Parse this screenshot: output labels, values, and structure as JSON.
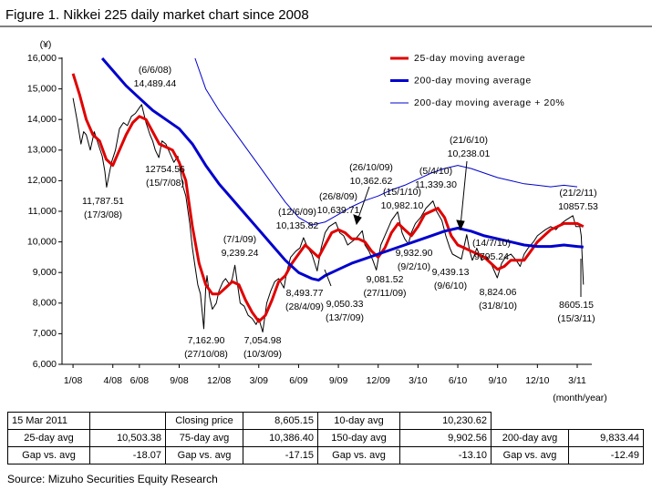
{
  "chart_data": {
    "type": "line",
    "title": "Figure 1. Nikkei 225 daily market chart since 2008",
    "y_label": "(¥)",
    "x_label": "(month/year)",
    "xlim": [
      -0.83,
      39.1
    ],
    "ylim": [
      6000,
      16000
    ],
    "xticks": [
      {
        "value": 0,
        "label": "1/08"
      },
      {
        "value": 3,
        "label": "4/08"
      },
      {
        "value": 5,
        "label": "6/08"
      },
      {
        "value": 8,
        "label": "9/08"
      },
      {
        "value": 11,
        "label": "12/08"
      },
      {
        "value": 14,
        "label": "3/09"
      },
      {
        "value": 17,
        "label": "6/09"
      },
      {
        "value": 20,
        "label": "9/09"
      },
      {
        "value": 23,
        "label": "12/09"
      },
      {
        "value": 26,
        "label": "3/10"
      },
      {
        "value": 29,
        "label": "6/10"
      },
      {
        "value": 32,
        "label": "9/10"
      },
      {
        "value": 35,
        "label": "12/10"
      },
      {
        "value": 38,
        "label": "3/11"
      }
    ],
    "yticks": [
      {
        "value": 6000,
        "label": "6,000"
      },
      {
        "value": 7000,
        "label": "7,000"
      },
      {
        "value": 8000,
        "label": "8,000"
      },
      {
        "value": 9000,
        "label": "9,000"
      },
      {
        "value": 10000,
        "label": "10,000"
      },
      {
        "value": 11000,
        "label": "11,000"
      },
      {
        "value": 12000,
        "label": "12,000"
      },
      {
        "value": 13000,
        "label": "13,000"
      },
      {
        "value": 14000,
        "label": "14,000"
      },
      {
        "value": 15000,
        "label": "15,000"
      },
      {
        "value": 16000,
        "label": "16,000"
      }
    ],
    "legend": "upper right",
    "series": [
      {
        "color": "#000000",
        "width": 1,
        "x": [
          0,
          0.3,
          0.6,
          0.8,
          1.0,
          1.3,
          1.6,
          1.9,
          2.2,
          2.4,
          2.53,
          2.9,
          3.2,
          3.5,
          3.8,
          4.1,
          4.4,
          4.7,
          5.17,
          5.5,
          5.8,
          6.0,
          6.2,
          6.47,
          6.7,
          7.0,
          7.3,
          7.6,
          7.9,
          8.1,
          8.3,
          8.5,
          8.8,
          9.0,
          9.2,
          9.4,
          9.6,
          9.86,
          10.0,
          10.1,
          10.3,
          10.5,
          10.8,
          11.0,
          11.3,
          11.5,
          11.8,
          12.0,
          12.2,
          12.4,
          12.6,
          12.9,
          13.2,
          13.5,
          13.8,
          14.0,
          14.3,
          14.6,
          14.9,
          15.2,
          15.5,
          15.9,
          16.1,
          16.4,
          16.8,
          17.1,
          17.37,
          17.7,
          18.0,
          18.4,
          18.7,
          19.0,
          19.3,
          19.8,
          20.1,
          20.4,
          20.7,
          21.0,
          21.3,
          21.8,
          22.0,
          22.3,
          22.6,
          22.86,
          23.2,
          23.5,
          23.8,
          24.0,
          24.47,
          24.8,
          25.0,
          25.27,
          25.5,
          25.8,
          26.2,
          26.6,
          27.13,
          27.4,
          27.8,
          28.1,
          28.4,
          28.6,
          29.27,
          29.5,
          29.67,
          29.9,
          30.1,
          30.2,
          30.43,
          30.8,
          31.2,
          31.6,
          31.97,
          32.3,
          32.6,
          33.0,
          33.4,
          33.7,
          34.0,
          34.3,
          34.7,
          35.0,
          35.3,
          35.6,
          36.0,
          36.4,
          36.8,
          37.1,
          37.67,
          37.9,
          38.2,
          38.3,
          38.47
        ],
        "values": [
          14700,
          14000,
          13200,
          13600,
          13500,
          13000,
          13600,
          13200,
          12800,
          12300,
          11787.51,
          12600,
          13000,
          13700,
          13900,
          13800,
          14100,
          14200,
          14489.44,
          13900,
          13500,
          13300,
          13000,
          12754.56,
          13300,
          13200,
          12900,
          12600,
          12800,
          12300,
          11800,
          11500,
          10600,
          9800,
          9200,
          8600,
          8300,
          7162.9,
          8500,
          8900,
          8200,
          7800,
          8000,
          8400,
          8700,
          8800,
          8600,
          8800,
          9239.24,
          8600,
          8000,
          7900,
          7600,
          7500,
          7300,
          7500,
          7054.98,
          8000,
          8400,
          8700,
          8800,
          8493.77,
          9000,
          9500,
          9700,
          9800,
          10135.82,
          9800,
          9600,
          9050.33,
          9800,
          10300,
          10500,
          10639.71,
          10300,
          10200,
          9900,
          10000,
          10100,
          10362.62,
          9900,
          9700,
          9400,
          9081.52,
          9900,
          10200,
          10500,
          10700,
          10982.1,
          10300,
          10100,
          9932.9,
          10300,
          10600,
          10800,
          11100,
          11339.3,
          11000,
          10700,
          10200,
          9800,
          9600,
          9439.13,
          9900,
          10238.01,
          9700,
          9400,
          9500,
          9795.24,
          9400,
          9500,
          9200,
          8824.06,
          9300,
          9500,
          9600,
          9400,
          9200,
          9600,
          9800,
          10000,
          10200,
          10300,
          10400,
          10500,
          10400,
          10600,
          10700,
          10857.53,
          10500,
          10500,
          10200,
          8605.15
        ]
      },
      {
        "name": "25-day moving average",
        "color": "#e00000",
        "width": 3,
        "x": [
          0,
          0.5,
          1,
          1.5,
          2,
          2.5,
          3,
          3.5,
          4,
          4.5,
          5,
          5.5,
          6,
          6.5,
          7,
          7.5,
          8,
          8.5,
          9,
          9.5,
          10,
          10.5,
          11,
          11.5,
          12,
          12.5,
          13,
          13.5,
          14,
          14.5,
          15,
          15.5,
          16,
          16.5,
          17,
          17.5,
          18,
          18.5,
          19,
          19.5,
          20,
          20.5,
          21,
          21.5,
          22,
          22.5,
          23,
          23.5,
          24,
          24.5,
          25,
          25.5,
          26,
          26.5,
          27,
          27.5,
          28,
          28.5,
          29,
          29.5,
          30,
          30.5,
          31,
          31.5,
          32,
          32.5,
          33,
          33.5,
          34,
          34.5,
          35,
          35.5,
          36,
          36.5,
          37,
          37.5,
          38,
          38.47
        ],
        "values": [
          15500,
          14800,
          14000,
          13500,
          13300,
          12700,
          12500,
          13000,
          13500,
          13900,
          14100,
          14000,
          13600,
          13200,
          13100,
          13000,
          12600,
          12000,
          10500,
          9300,
          8600,
          8300,
          8300,
          8500,
          8700,
          8600,
          8100,
          7700,
          7400,
          7600,
          8100,
          8700,
          8900,
          9300,
          9600,
          9900,
          9700,
          9500,
          9900,
          10300,
          10400,
          10300,
          10100,
          10100,
          10000,
          9700,
          9500,
          9800,
          10300,
          10600,
          10400,
          10200,
          10500,
          10900,
          11000,
          11100,
          10800,
          10200,
          9900,
          9800,
          9700,
          9600,
          9500,
          9300,
          9100,
          9200,
          9400,
          9400,
          9400,
          9700,
          10000,
          10200,
          10400,
          10500,
          10600,
          10600,
          10600,
          10503.38
        ]
      },
      {
        "name": "200-day moving average",
        "color": "#0000cc",
        "width": 3,
        "x": [
          2.2,
          3,
          4,
          5,
          6,
          7,
          8,
          9,
          10,
          11,
          12,
          13,
          14,
          15,
          16,
          17,
          18,
          18.5,
          19,
          20,
          21,
          22,
          23,
          24,
          25,
          26,
          27,
          28,
          29,
          30,
          31,
          32,
          33,
          34,
          35,
          36,
          37,
          38,
          38.47
        ],
        "values": [
          16000,
          15600,
          15100,
          14700,
          14300,
          14000,
          13700,
          13200,
          12500,
          11900,
          11400,
          10900,
          10400,
          9900,
          9400,
          9000,
          8800,
          8750,
          8900,
          9100,
          9300,
          9450,
          9600,
          9750,
          9900,
          10050,
          10200,
          10350,
          10450,
          10350,
          10200,
          10100,
          10000,
          9900,
          9850,
          9850,
          9900,
          9850,
          9833.44
        ]
      },
      {
        "name": "200-day moving average + 20%",
        "color": "#0000cc",
        "width": 1,
        "x": [
          9.2,
          10,
          11,
          12,
          13,
          14,
          15,
          16,
          17,
          18,
          19,
          20,
          21,
          22,
          23,
          24,
          25,
          26,
          27,
          28,
          29,
          30,
          31,
          32,
          33,
          34,
          35,
          36,
          37,
          38
        ],
        "values": [
          16000,
          15000,
          14300,
          13700,
          13100,
          12500,
          11900,
          11300,
          10800,
          10550,
          10650,
          10900,
          11150,
          11350,
          11500,
          11700,
          11850,
          12050,
          12250,
          12400,
          12500,
          12400,
          12250,
          12100,
          12000,
          11900,
          11850,
          11800,
          11850,
          11800
        ]
      }
    ],
    "annotations": [
      {
        "lines": [
          "(6/6/08)",
          "14,489.44"
        ]
      },
      {
        "lines": [
          "12754.56",
          "(15/7/08)"
        ]
      },
      {
        "lines": [
          "11,787.51",
          "(17/3/08)"
        ]
      },
      {
        "lines": [
          "(7/1/09)",
          "9,239.24"
        ]
      },
      {
        "lines": [
          "7,162.90",
          "(27/10/08)"
        ]
      },
      {
        "lines": [
          "7,054.98",
          "(10/3/09)"
        ]
      },
      {
        "lines": [
          "(12/6/09)",
          "10,135.82"
        ]
      },
      {
        "lines": [
          "8,493.77",
          "(28/4/09)"
        ]
      },
      {
        "lines": [
          "9,050.33",
          "(13/7/09)"
        ]
      },
      {
        "lines": [
          "(26/8/09)",
          "10,639.71"
        ]
      },
      {
        "lines": [
          "(26/10/09)",
          "10,362.62"
        ]
      },
      {
        "lines": [
          "(15/1/10)",
          "10,982.10"
        ]
      },
      {
        "lines": [
          "(5/4/10)",
          "11,339.30"
        ]
      },
      {
        "lines": [
          "9,932.90",
          "(9/2/10)"
        ]
      },
      {
        "lines": [
          "9,081.52",
          "(27/11/09)"
        ]
      },
      {
        "lines": [
          "9,439.13",
          "(9/6/10)"
        ]
      },
      {
        "lines": [
          "(21/6/10)",
          "10,238.01"
        ]
      },
      {
        "lines": [
          "(14/7/10)",
          "9795.24"
        ]
      },
      {
        "lines": [
          "8,824.06",
          "(31/8/10)"
        ]
      },
      {
        "lines": [
          "(21/2/11)",
          "10857.53"
        ]
      },
      {
        "lines": [
          "8605.15",
          "(15/3/11)"
        ]
      }
    ]
  },
  "table": {
    "rows": [
      [
        "15 Mar 2011",
        null,
        "Closing price",
        "8,605.15",
        "10-day avg",
        "10,230.62"
      ],
      [
        "25-day avg",
        "10,503.38",
        "75-day avg",
        "10,386.40",
        "150-day avg",
        "9,902.56",
        "200-day avg",
        "9,833.44"
      ],
      [
        "Gap vs. avg",
        "-18.07",
        "Gap vs. avg",
        "-17.15",
        "Gap vs. avg",
        "-13.10",
        "Gap vs. avg",
        "-12.49"
      ]
    ]
  },
  "source": "Source: Mizuho Securities Equity Research"
}
